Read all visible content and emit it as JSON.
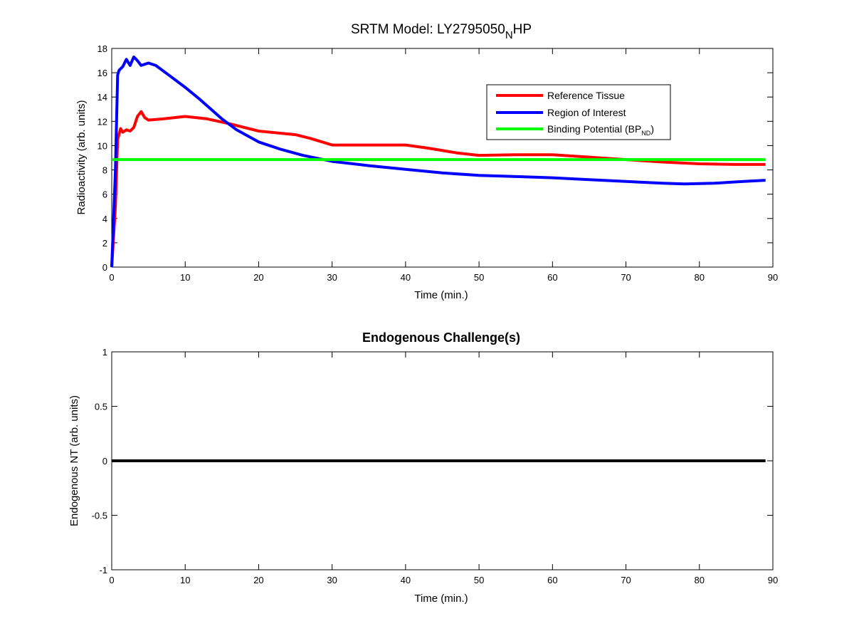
{
  "figure": {
    "top_title_main": "SRTM Model: LY2795050",
    "top_title_sub": "N",
    "top_title_tail": "HP",
    "bottom_title": "Endogenous Challenge(s)"
  },
  "colors": {
    "reference": "#ff0000",
    "roi": "#0000ff",
    "bp": "#00ff00",
    "baseline": "#000000"
  },
  "chart_data": [
    {
      "type": "line",
      "title": "SRTM Model: LY2795050_NHP",
      "xlabel": "Time (min.)",
      "ylabel": "Radioactivity (arb. units)",
      "xlim": [
        0,
        90
      ],
      "ylim": [
        0,
        18
      ],
      "xticks": [
        "0",
        "10",
        "20",
        "30",
        "40",
        "50",
        "60",
        "70",
        "80",
        "90"
      ],
      "yticks": [
        "0",
        "2",
        "4",
        "6",
        "8",
        "10",
        "12",
        "14",
        "16",
        "18"
      ],
      "grid": false,
      "legend": {
        "placement": "top-right",
        "entries": [
          "Reference Tissue",
          "Region of Interest",
          "Binding Potential (BP"
        ],
        "bp_subscript": "ND",
        "bp_close": ")"
      },
      "series": [
        {
          "name": "Reference Tissue",
          "color": "#ff0000",
          "x": [
            0,
            0.5,
            0.8,
            1.2,
            1.5,
            2,
            2.5,
            3,
            3.5,
            4,
            4.5,
            5,
            7,
            10,
            13,
            16,
            20,
            25,
            27,
            30,
            35,
            40,
            43,
            47,
            50,
            55,
            60,
            65,
            70,
            75,
            80,
            85,
            89
          ],
          "y": [
            0,
            5,
            10.5,
            11.4,
            11.1,
            11.3,
            11.2,
            11.5,
            12.4,
            12.8,
            12.3,
            12.1,
            12.2,
            12.4,
            12.2,
            11.8,
            11.2,
            10.9,
            10.6,
            10.05,
            10.05,
            10.05,
            9.8,
            9.4,
            9.2,
            9.25,
            9.25,
            9.05,
            8.85,
            8.65,
            8.5,
            8.45,
            8.45
          ]
        },
        {
          "name": "Region of Interest",
          "color": "#0000ff",
          "x": [
            0,
            0.5,
            0.8,
            1,
            1.5,
            2,
            2.5,
            3,
            3.5,
            4,
            5,
            6,
            8,
            10,
            12,
            15,
            17,
            20,
            23,
            26,
            30,
            35,
            40,
            45,
            50,
            55,
            60,
            65,
            70,
            75,
            78,
            82,
            86,
            89
          ],
          "y": [
            0,
            8,
            15.8,
            16.2,
            16.5,
            17.1,
            16.6,
            17.3,
            17.0,
            16.6,
            16.8,
            16.6,
            15.7,
            14.8,
            13.8,
            12.2,
            11.3,
            10.3,
            9.7,
            9.2,
            8.7,
            8.35,
            8.05,
            7.75,
            7.55,
            7.45,
            7.35,
            7.2,
            7.05,
            6.9,
            6.85,
            6.9,
            7.05,
            7.15
          ]
        },
        {
          "name": "Binding Potential (BP_ND)",
          "color": "#00ff00",
          "x": [
            0,
            89
          ],
          "y": [
            8.85,
            8.85
          ]
        }
      ]
    },
    {
      "type": "line",
      "title": "Endogenous Challenge(s)",
      "xlabel": "Time (min.)",
      "ylabel": "Endogenous NT (arb. units)",
      "xlim": [
        0,
        90
      ],
      "ylim": [
        -1,
        1
      ],
      "xticks": [
        "0",
        "10",
        "20",
        "30",
        "40",
        "50",
        "60",
        "70",
        "80",
        "90"
      ],
      "yticks": [
        "-1",
        "-0.5",
        "0",
        "0.5",
        "1"
      ],
      "grid": false,
      "series": [
        {
          "color": "#000000",
          "x": [
            0,
            89
          ],
          "y": [
            0,
            0
          ]
        }
      ]
    }
  ]
}
